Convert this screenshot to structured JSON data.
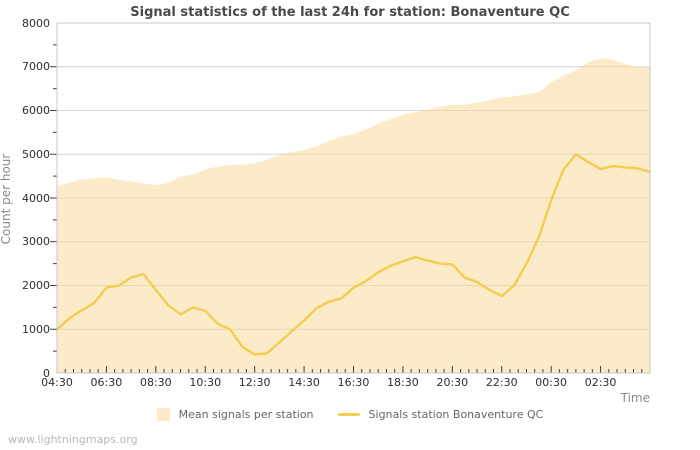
{
  "watermark": "www.lightningmaps.org",
  "chart_data": {
    "type": "area+line",
    "title": "Signal statistics of the last 24h for station: Bonaventure QC",
    "xlabel": "Time",
    "ylabel": "Count per hour",
    "ylim": [
      0,
      8000
    ],
    "y_tick_step": 1000,
    "y_minor_step": 500,
    "x_span_hours": 24,
    "x_start": "04:30",
    "x_minor_tick_minutes": 20,
    "x_major_tick_minutes": 120,
    "x_tick_labels": [
      "04:30",
      "06:30",
      "08:30",
      "10:30",
      "12:30",
      "14:30",
      "16:30",
      "18:30",
      "20:30",
      "22:30",
      "00:30",
      "02:30"
    ],
    "sample_interval_minutes": 30,
    "grid": "horizontal-only",
    "legend_position": "bottom-center",
    "colors": {
      "area_fill": "rgba(249,215,145,0.5)",
      "line": "#f4cd4e",
      "grid": "#d6d6d6",
      "border": "#c9c9c9",
      "tick": "#3f3f3f"
    },
    "series": [
      {
        "name": "Mean signals per station",
        "style": "area",
        "values": [
          4270,
          4350,
          4420,
          4450,
          4470,
          4420,
          4380,
          4330,
          4290,
          4350,
          4490,
          4540,
          4650,
          4720,
          4760,
          4760,
          4790,
          4870,
          4990,
          5050,
          5100,
          5180,
          5300,
          5400,
          5460,
          5570,
          5700,
          5800,
          5900,
          5960,
          6020,
          6080,
          6130,
          6130,
          6180,
          6240,
          6290,
          6330,
          6370,
          6420,
          6650,
          6800,
          6920,
          7100,
          7200,
          7160,
          7060,
          7000,
          7000
        ]
      },
      {
        "name": "Signals station Bonaventure QC",
        "style": "line",
        "values": [
          1000,
          1250,
          1430,
          1600,
          1950,
          2000,
          2180,
          2260,
          1900,
          1550,
          1340,
          1500,
          1420,
          1130,
          1000,
          600,
          420,
          450,
          700,
          950,
          1200,
          1480,
          1630,
          1700,
          1950,
          2100,
          2300,
          2450,
          2550,
          2650,
          2570,
          2500,
          2480,
          2180,
          2080,
          1900,
          1760,
          2000,
          2500,
          3100,
          3950,
          4650,
          5000,
          4820,
          4660,
          4730,
          4700,
          4680,
          4600
        ]
      }
    ]
  }
}
